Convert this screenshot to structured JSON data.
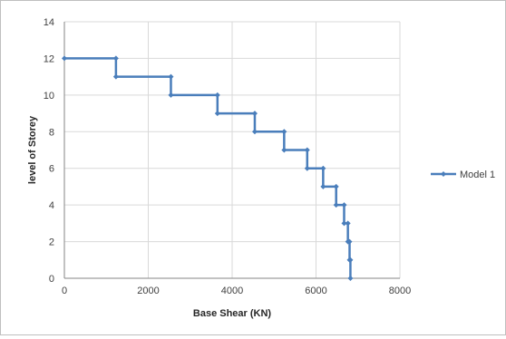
{
  "chart_data": {
    "type": "line",
    "title": "",
    "xlabel": "Base Shear (KN)",
    "ylabel": "level of Storey",
    "xlim": [
      0,
      8000
    ],
    "ylim": [
      0,
      14
    ],
    "x_ticks": [
      0,
      2000,
      4000,
      6000,
      8000
    ],
    "y_ticks": [
      0,
      2,
      4,
      6,
      8,
      10,
      12,
      14
    ],
    "grid": true,
    "legend_position": "right",
    "series": [
      {
        "name": "Model 1",
        "color": "#4a7ebb",
        "points": [
          [
            0,
            12
          ],
          [
            1230,
            12
          ],
          [
            1230,
            11
          ],
          [
            2540,
            11
          ],
          [
            2540,
            10
          ],
          [
            3650,
            10
          ],
          [
            3650,
            9
          ],
          [
            4540,
            9
          ],
          [
            4540,
            8
          ],
          [
            5240,
            8
          ],
          [
            5240,
            7
          ],
          [
            5790,
            7
          ],
          [
            5790,
            6
          ],
          [
            6170,
            6
          ],
          [
            6170,
            5
          ],
          [
            6480,
            5
          ],
          [
            6480,
            4
          ],
          [
            6670,
            4
          ],
          [
            6670,
            3
          ],
          [
            6760,
            3
          ],
          [
            6760,
            2
          ],
          [
            6800,
            2
          ],
          [
            6800,
            1
          ],
          [
            6820,
            1
          ],
          [
            6820,
            0
          ]
        ]
      }
    ]
  }
}
